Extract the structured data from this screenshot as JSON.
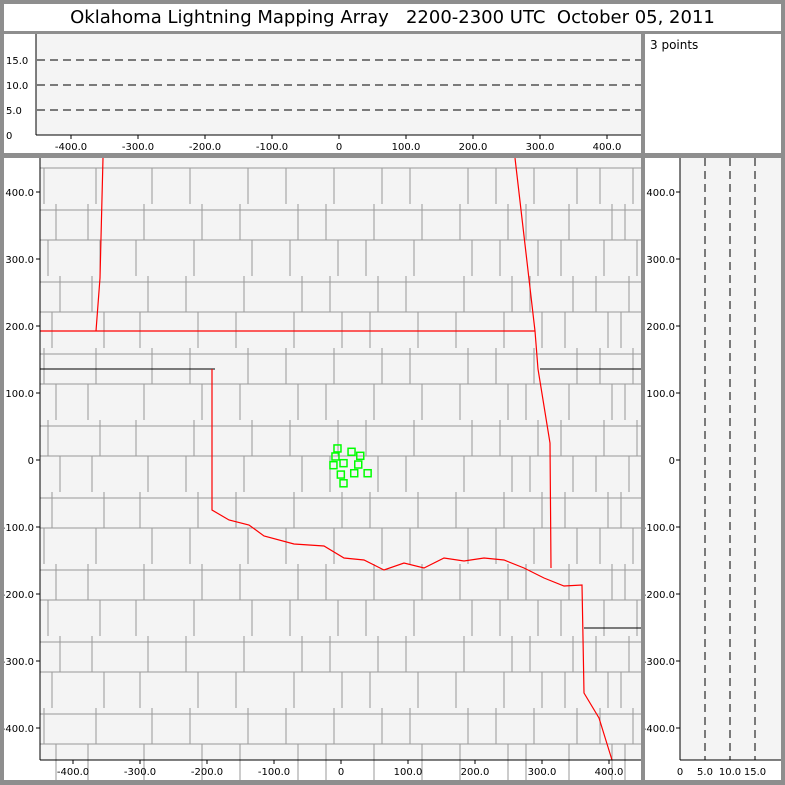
{
  "title": "Oklahoma Lightning Mapping Array   2200-2300 UTC  October 05, 2011",
  "info": {
    "count_label": "3 points"
  },
  "colors": {
    "source": "#00ff00",
    "state_border": "#ff0000",
    "county": "#999999",
    "background": "#f4f4f4"
  },
  "chart_data": [
    {
      "type": "scatter",
      "panel": "plan-view",
      "xlim": [
        -450,
        450
      ],
      "ylim": [
        -450,
        450
      ],
      "x_ticks": [
        "-400.0",
        "-300.0",
        "-200.0",
        "-100.0",
        "0",
        "100.0",
        "200.0",
        "300.0",
        "400.0"
      ],
      "y_ticks": [
        "400.0",
        "300.0",
        "200.0",
        "100.0",
        "0",
        "-100.0",
        "-200.0",
        "-300.0",
        "-400.0"
      ],
      "points": [
        {
          "x": -6,
          "y": 18
        },
        {
          "x": 15,
          "y": 13
        },
        {
          "x": 28,
          "y": 7
        },
        {
          "x": -9,
          "y": 6
        },
        {
          "x": 3,
          "y": -4
        },
        {
          "x": -12,
          "y": -7
        },
        {
          "x": 25,
          "y": -6
        },
        {
          "x": -1,
          "y": -21
        },
        {
          "x": 19,
          "y": -19
        },
        {
          "x": 39,
          "y": -19
        },
        {
          "x": 3,
          "y": -34
        }
      ]
    },
    {
      "type": "scatter",
      "panel": "altitude-vs-x",
      "xlim": [
        -450,
        450
      ],
      "ylim": [
        0,
        20
      ],
      "x_ticks": [
        "-400.0",
        "-300.0",
        "-200.0",
        "-100.0",
        "0",
        "100.0",
        "200.0",
        "300.0",
        "400.0"
      ],
      "y_ticks": [
        "15.0",
        "10.0",
        "5.0",
        "0"
      ],
      "grid": "dashed"
    },
    {
      "type": "scatter",
      "panel": "altitude-vs-y",
      "xlim": [
        0,
        20
      ],
      "ylim": [
        -450,
        450
      ],
      "x_ticks": [
        "0",
        "5.0",
        "10.0",
        "15.0"
      ],
      "y_ticks": [
        "400.0",
        "300.0",
        "200.0",
        "100.0",
        "0",
        "-100.0",
        "-200.0",
        "-300.0",
        "-400.0"
      ],
      "grid": "dashed"
    }
  ]
}
